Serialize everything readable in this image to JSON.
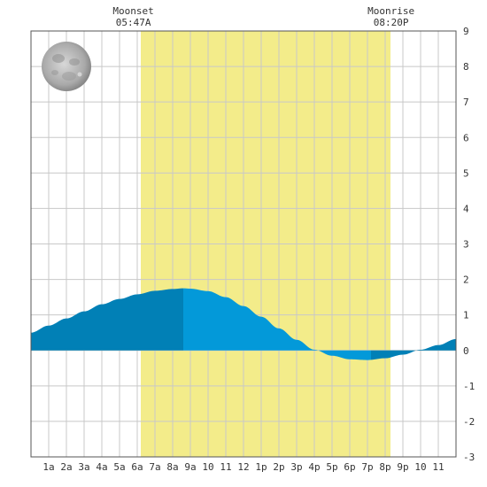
{
  "chart_data": {
    "type": "area",
    "x_tick_labels": [
      "1a",
      "2a",
      "3a",
      "4a",
      "5a",
      "6a",
      "7a",
      "8a",
      "9a",
      "10",
      "11",
      "12",
      "1p",
      "2p",
      "3p",
      "4p",
      "5p",
      "6p",
      "7p",
      "8p",
      "9p",
      "10",
      "11"
    ],
    "ylim": [
      -3,
      9
    ],
    "y_ticks": [
      -3,
      -2,
      -1,
      0,
      1,
      2,
      3,
      4,
      5,
      6,
      7,
      8,
      9
    ],
    "grid": true,
    "daylight_hours": [
      6.2,
      20.3
    ],
    "series": [
      {
        "hours": [
          0,
          1,
          2,
          3,
          4,
          5,
          6,
          7,
          8,
          8.6,
          9,
          10,
          11,
          12,
          13,
          14,
          15,
          16,
          17,
          18,
          19,
          20,
          21,
          22,
          23,
          24
        ],
        "heights": [
          0.5,
          0.7,
          0.9,
          1.1,
          1.3,
          1.45,
          1.58,
          1.68,
          1.73,
          1.75,
          1.74,
          1.67,
          1.5,
          1.25,
          0.95,
          0.62,
          0.3,
          0.02,
          -0.15,
          -0.25,
          -0.27,
          -0.22,
          -0.12,
          0.02,
          0.15,
          0.32
        ]
      }
    ],
    "shade_boundaries": [
      8.6,
      19.2
    ],
    "moon_events": [
      {
        "label": "Moonset",
        "time": "05:47A",
        "hour": 5.78
      },
      {
        "label": "Moonrise",
        "time": "08:20P",
        "hour": 20.33
      }
    ],
    "moon_phase": "full-moon-icon",
    "colors": {
      "daylight": "#f3ec8a",
      "tide_dark": "#0180b6",
      "tide_light": "#0399d9",
      "grid": "#c8c8c8",
      "border": "#555555"
    }
  }
}
